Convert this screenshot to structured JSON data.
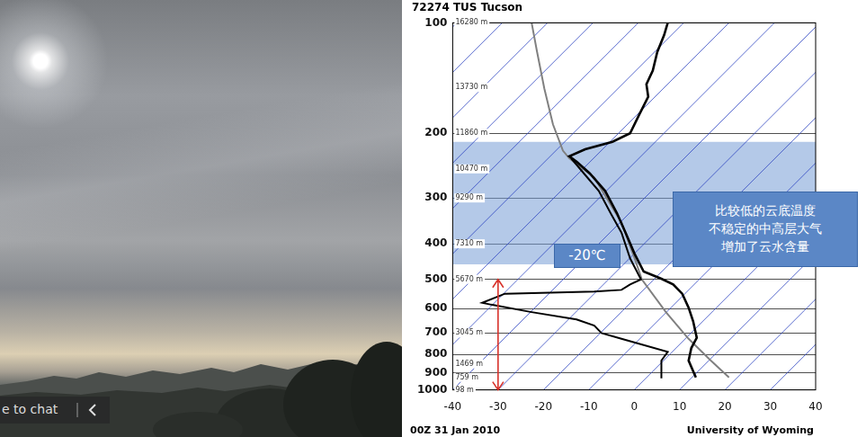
{
  "photo": {
    "overlay_text": "e to chat"
  },
  "chart_data": {
    "type": "line",
    "title": "72274 TUS Tucson",
    "caption": "00Z 31 Jan 2010",
    "source": "University of Wyoming",
    "xlim": [
      -40,
      40
    ],
    "xticks": [
      -40,
      -30,
      -20,
      -10,
      0,
      10,
      20,
      30,
      40
    ],
    "ylim": [
      1000,
      100
    ],
    "yticks": [
      100,
      200,
      300,
      400,
      500,
      600,
      700,
      800,
      900,
      1000
    ],
    "log": "y",
    "grid": true,
    "marker": "none",
    "series": [
      {
        "color": "#000000",
        "line_style": "solid",
        "x": [
          13.6,
          12.0,
          12.6,
          13.8,
          13.0,
          12.0,
          10.6,
          8.6,
          6.0,
          2.1,
          0.1,
          -1.9,
          -3.8,
          -6.4,
          -9.8,
          -12.7,
          -14.3,
          -10.8,
          -4.8,
          -0.9,
          1.1,
          3.1,
          2.7,
          4.1,
          5.1,
          6.6,
          7.4
        ],
        "y": [
          925,
          832,
          769,
          721,
          650,
          597,
          547,
          516,
          498,
          476,
          426,
          373,
          330,
          287,
          257,
          239,
          231,
          221,
          211,
          200,
          178,
          159,
          147,
          135,
          120,
          108,
          100
        ]
      },
      {
        "color": "#000000",
        "line_style": "solid",
        "x": [
          6.0,
          6.0,
          7.4,
          -2.8,
          -7.2,
          -8.8,
          -12.7,
          -22.6,
          -31.5,
          -33.5,
          -28.5,
          -8.8,
          -2.8,
          -0.9,
          1.5,
          -0.9,
          -2.8,
          -5.2,
          -7.8,
          -11.1,
          -13.9
        ],
        "y": [
          930,
          832,
          788,
          726,
          700,
          668,
          643,
          614,
          586,
          579,
          547,
          540,
          534,
          516,
          500,
          438,
          373,
          330,
          287,
          257,
          234
        ]
      },
      {
        "color": "#808080",
        "line_style": "solid",
        "x": [
          -22.6,
          -21.4,
          -19.8,
          -17.9,
          -15.7,
          -14.3,
          -8.8,
          -2.8,
          0.1,
          1.7,
          7.0,
          12.0,
          16.9,
          20.9
        ],
        "y": [
          100,
          120,
          151,
          189,
          223,
          234,
          264,
          350,
          438,
          500,
          614,
          726,
          832,
          925
        ]
      }
    ],
    "height_labels": [
      {
        "value": 100,
        "label": "16280 m"
      },
      {
        "value": 150,
        "label": "13730 m"
      },
      {
        "value": 200,
        "label": "11860 m"
      },
      {
        "value": 250,
        "label": "10470 m"
      },
      {
        "value": 300,
        "label": "9290 m"
      },
      {
        "value": 400,
        "label": "7310 m"
      },
      {
        "value": 500,
        "label": "5670 m"
      },
      {
        "value": 700,
        "label": "3045 m"
      },
      {
        "value": 850,
        "label": "1469 m"
      },
      {
        "value": 925,
        "label": "759 m"
      },
      {
        "value": 1000,
        "label": "98 m"
      }
    ],
    "highlight_ylim": [
      455,
      211
    ],
    "arrow": {
      "x": -30,
      "ylim": [
        500,
        1000
      ]
    },
    "annotations": [
      {
        "text": "-20℃"
      },
      {
        "text": "比较低的云底温度\n不稳定的中高层大气\n增加了云水含量"
      }
    ]
  }
}
